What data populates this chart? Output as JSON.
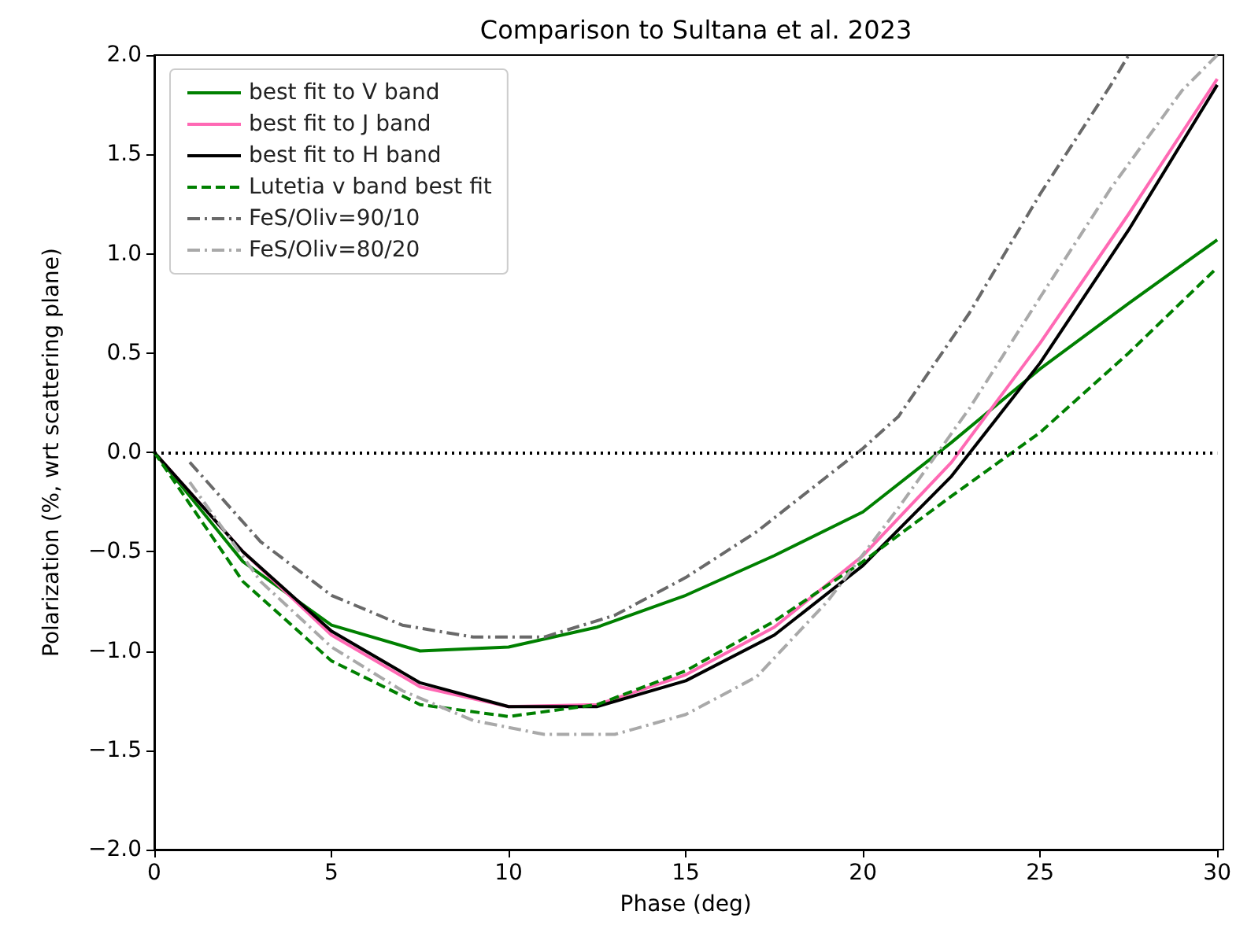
{
  "chart_data": {
    "type": "line",
    "title": "Comparison to Sultana et al. 2023",
    "xlabel": "Phase (deg)",
    "ylabel": "Polarization (%, wrt scattering plane)",
    "xlim": [
      0,
      30
    ],
    "xticks": [
      0,
      5,
      10,
      15,
      20,
      25,
      30
    ],
    "ylim": [
      -2,
      2
    ],
    "yticks": [
      {
        "value": -2,
        "label": "−2.0"
      },
      {
        "value": -1.5,
        "label": "−1.5"
      },
      {
        "value": -1,
        "label": "−1.0"
      },
      {
        "value": -0.5,
        "label": "−0.5"
      },
      {
        "value": 0,
        "label": "0.0"
      },
      {
        "value": 0.5,
        "label": "0.5"
      },
      {
        "value": 1,
        "label": "1.0"
      },
      {
        "value": 1.5,
        "label": "1.5"
      },
      {
        "value": 2,
        "label": "2.0"
      }
    ],
    "grid": false,
    "legend": "top left",
    "marker": "none",
    "ref_lines": [
      {
        "axis": "y",
        "value": 0,
        "color": "#000000",
        "line_style": "dotted"
      }
    ],
    "series": [
      {
        "name": "best fit to V band",
        "color": "#008000",
        "line_style": "solid",
        "x": [
          0,
          2.5,
          5,
          7.5,
          10,
          12.5,
          15,
          17.5,
          20,
          22.5,
          25,
          27.5,
          30
        ],
        "values": [
          0,
          -0.55,
          -0.87,
          -1.0,
          -0.98,
          -0.88,
          -0.72,
          -0.52,
          -0.3,
          0.05,
          0.42,
          0.75,
          1.07
        ]
      },
      {
        "name": "best fit to J band",
        "color": "#ff69b4",
        "line_style": "solid",
        "x": [
          0,
          2.5,
          5,
          7.5,
          10,
          12.5,
          15,
          17.5,
          20,
          22.5,
          25,
          27.5,
          30
        ],
        "values": [
          0,
          -0.5,
          -0.92,
          -1.18,
          -1.28,
          -1.27,
          -1.12,
          -0.88,
          -0.52,
          -0.05,
          0.55,
          1.2,
          1.88
        ]
      },
      {
        "name": "best fit to H band",
        "color": "#000000",
        "line_style": "solid",
        "x": [
          0,
          2.5,
          5,
          7.5,
          10,
          12.5,
          15,
          17.5,
          20,
          22.5,
          25,
          27.5,
          30
        ],
        "values": [
          0,
          -0.5,
          -0.9,
          -1.16,
          -1.28,
          -1.28,
          -1.15,
          -0.92,
          -0.57,
          -0.12,
          0.45,
          1.12,
          1.85
        ]
      },
      {
        "name": "Lutetia v band best fit",
        "color": "#008000",
        "line_style": "dashed",
        "x": [
          0,
          2.5,
          5,
          7.5,
          10,
          12.5,
          15,
          17.5,
          20,
          22.5,
          25,
          27.5,
          30
        ],
        "values": [
          0,
          -0.65,
          -1.05,
          -1.27,
          -1.33,
          -1.27,
          -1.1,
          -0.85,
          -0.55,
          -0.22,
          0.1,
          0.5,
          0.93
        ]
      },
      {
        "name": "FeS/Oliv=90/10",
        "color": "#696969",
        "line_style": "dashdot",
        "x": [
          1,
          3,
          5,
          7,
          9,
          11,
          13,
          15,
          17,
          19,
          20,
          21,
          23,
          25,
          27,
          27.5
        ],
        "values": [
          -0.05,
          -0.45,
          -0.72,
          -0.87,
          -0.93,
          -0.93,
          -0.82,
          -0.63,
          -0.4,
          -0.12,
          0.02,
          0.18,
          0.7,
          1.3,
          1.85,
          2.0
        ]
      },
      {
        "name": "FeS/Oliv=80/20",
        "color": "#a9a9a9",
        "line_style": "dashdot",
        "x": [
          1,
          3,
          5,
          7,
          9,
          11,
          13,
          15,
          17,
          19,
          21,
          23,
          25,
          27,
          29,
          30
        ],
        "values": [
          -0.15,
          -0.65,
          -0.98,
          -1.2,
          -1.35,
          -1.42,
          -1.42,
          -1.32,
          -1.13,
          -0.75,
          -0.28,
          0.22,
          0.78,
          1.33,
          1.82,
          2.0
        ]
      }
    ]
  }
}
